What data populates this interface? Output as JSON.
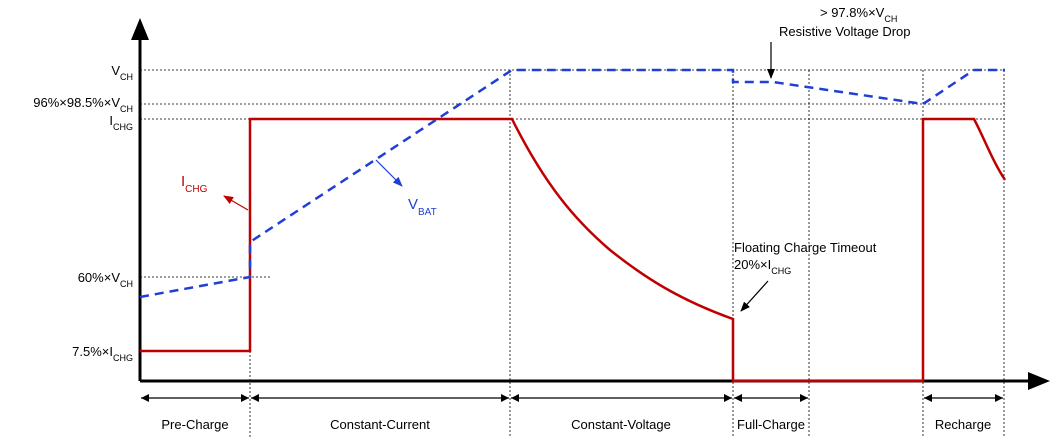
{
  "y_labels": {
    "vch": {
      "main": "V",
      "sub": "CH"
    },
    "v96": {
      "main": "96%×98.5%×V",
      "sub": "CH"
    },
    "ichg": {
      "main": "I",
      "sub": "CHG"
    },
    "v60": {
      "main": "60%×V",
      "sub": "CH"
    },
    "i75": {
      "main": "7.5%×I",
      "sub": "CHG"
    }
  },
  "curve_labels": {
    "ichg": {
      "main": "I",
      "sub": "CHG"
    },
    "vbat": {
      "main": "V",
      "sub": "BAT"
    }
  },
  "annotations": {
    "top": {
      "main": "> 97.8%×V",
      "sub": "CH"
    },
    "drop": "Resistive Voltage Drop",
    "timeout": "Floating Charge Timeout",
    "pct": {
      "main": "20%×I",
      "sub": "CHG"
    }
  },
  "phases": [
    "Pre-Charge",
    "Constant-Current",
    "Constant-Voltage",
    "Full-Charge",
    "Recharge"
  ],
  "colors": {
    "current": "#c00000",
    "voltage": "#1f3fd6",
    "axis": "#000000"
  }
}
